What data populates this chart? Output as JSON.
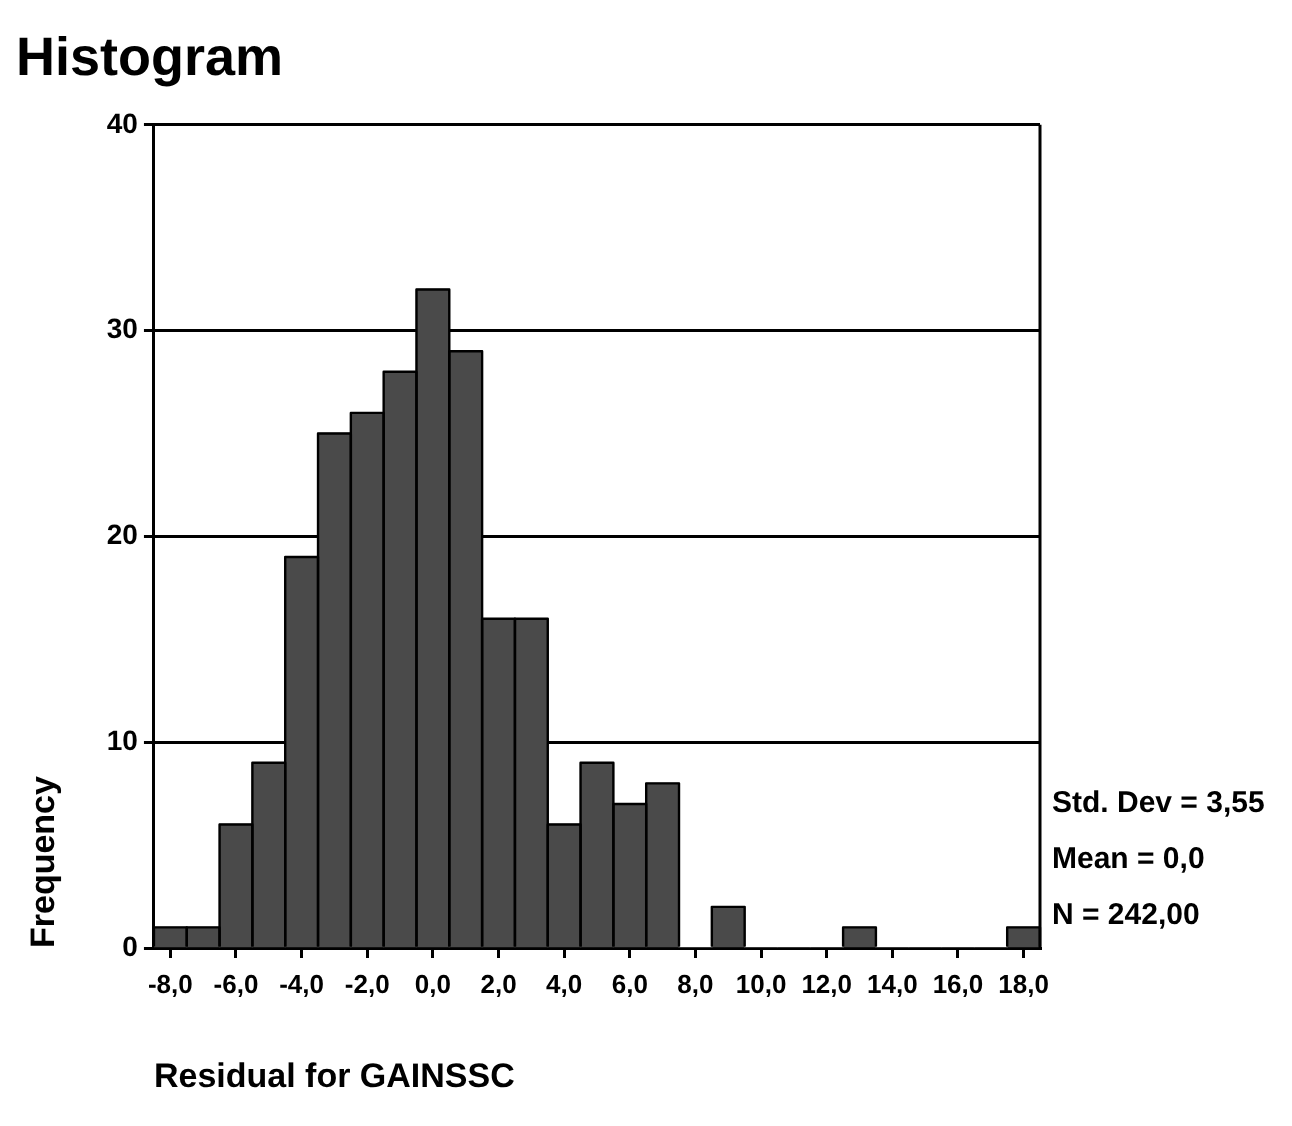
{
  "chart_data": {
    "type": "bar",
    "title": "Histogram",
    "xlabel": "Residual for GAINSSC",
    "ylabel": "Frequency",
    "x": [
      -8,
      -7,
      -6,
      -5,
      -4,
      -3,
      -2,
      -1,
      0,
      1,
      2,
      3,
      4,
      5,
      6,
      7,
      8,
      9,
      10,
      11,
      12,
      13,
      14,
      15,
      16,
      17,
      18
    ],
    "values": [
      1,
      1,
      6,
      9,
      19,
      25,
      26,
      28,
      32,
      29,
      16,
      16,
      6,
      9,
      7,
      8,
      0,
      2,
      0,
      0,
      0,
      1,
      0,
      0,
      0,
      0,
      1
    ],
    "color": "#4a4a4a",
    "xlim": [
      -8.5,
      18.5
    ],
    "xticks": [
      {
        "value": -8,
        "label": "-8,0"
      },
      {
        "value": -6,
        "label": "-6,0"
      },
      {
        "value": -4,
        "label": "-4,0"
      },
      {
        "value": -2,
        "label": "-2,0"
      },
      {
        "value": 0,
        "label": "0,0"
      },
      {
        "value": 2,
        "label": "2,0"
      },
      {
        "value": 4,
        "label": "4,0"
      },
      {
        "value": 6,
        "label": "6,0"
      },
      {
        "value": 8,
        "label": "8,0"
      },
      {
        "value": 10,
        "label": "10,0"
      },
      {
        "value": 12,
        "label": "12,0"
      },
      {
        "value": 14,
        "label": "14,0"
      },
      {
        "value": 16,
        "label": "16,0"
      },
      {
        "value": 18,
        "label": "18,0"
      }
    ],
    "ylim": [
      0,
      40
    ],
    "yticks": [
      0,
      10,
      20,
      30,
      40
    ],
    "grid": "y",
    "annotations": [
      "Std. Dev = 3,55",
      "Mean = 0,0",
      "N = 242,00"
    ]
  }
}
